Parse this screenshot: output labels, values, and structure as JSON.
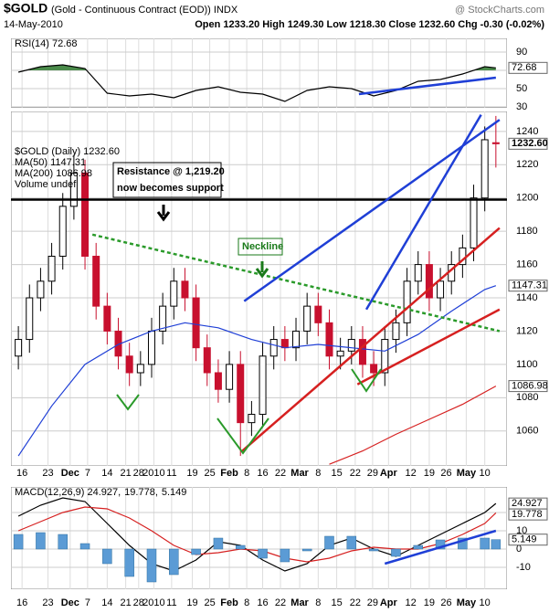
{
  "header": {
    "symbol": "$GOLD",
    "name": "(Gold - Continuous Contract (EOD)) INDX",
    "source": "@ StockCharts.com",
    "date": "14-May-2010",
    "quote": "Open 1233.20  High 1249.30  Low 1218.30  Close 1232.60  Chg -0.30 (-0.02%)"
  },
  "xlim": [
    -2,
    132
  ],
  "xticks": [
    {
      "value": 1,
      "label": "16"
    },
    {
      "value": 8,
      "label": "23"
    },
    {
      "value": 14,
      "label": "Dec"
    },
    {
      "value": 18.7,
      "label": "7"
    },
    {
      "value": 24,
      "label": "14"
    },
    {
      "value": 29,
      "label": "21"
    },
    {
      "value": 32.5,
      "label": "28"
    },
    {
      "value": 36.6,
      "label": "2010"
    },
    {
      "value": 41.4,
      "label": "11"
    },
    {
      "value": 47,
      "label": "19"
    },
    {
      "value": 51.7,
      "label": "25"
    },
    {
      "value": 57,
      "label": "Feb"
    },
    {
      "value": 61.7,
      "label": "8"
    },
    {
      "value": 66,
      "label": "16"
    },
    {
      "value": 70.8,
      "label": "22"
    },
    {
      "value": 76,
      "label": "Mar"
    },
    {
      "value": 81,
      "label": "8"
    },
    {
      "value": 86,
      "label": "15"
    },
    {
      "value": 91,
      "label": "22"
    },
    {
      "value": 95.7,
      "label": "29"
    },
    {
      "value": 100,
      "label": "Apr"
    },
    {
      "value": 106,
      "label": "12"
    },
    {
      "value": 111,
      "label": "19"
    },
    {
      "value": 115.6,
      "label": "26"
    },
    {
      "value": 121,
      "label": "May"
    },
    {
      "value": 126,
      "label": "10"
    }
  ],
  "chart_data": [
    {
      "type": "line",
      "legend": [
        {
          "text": "RSI(14) 72.68",
          "color": "#000000"
        }
      ],
      "ylim": [
        29,
        105
      ],
      "yticks": [
        30,
        50,
        70,
        90
      ],
      "fill_above": 70,
      "fill_color": "#4a8a4a",
      "series": [
        {
          "color": "#000000",
          "tag": "72.68",
          "x": [
            0,
            6,
            12,
            18,
            24,
            30,
            36,
            42,
            48,
            54,
            60,
            66,
            72,
            78,
            84,
            90,
            96,
            102,
            108,
            114,
            120,
            126,
            129
          ],
          "values": [
            68,
            74,
            76,
            72,
            45,
            42,
            44,
            40,
            48,
            52,
            46,
            44,
            36,
            48,
            52,
            50,
            42,
            48,
            58,
            60,
            66,
            74,
            72.68
          ]
        }
      ],
      "trendlines": [
        {
          "color": "#1f3fd6",
          "x1": 92,
          "y1": 44,
          "x2": 129,
          "y2": 62
        }
      ]
    },
    {
      "type": "candlestick",
      "legend": [
        {
          "text": "$GOLD (Daily) 1232.60",
          "color": "#000000"
        },
        {
          "text": "MA(50) 1147.31",
          "color": "#1f3fd6"
        },
        {
          "text": "MA(200) 1086.98",
          "color": "#d62020"
        },
        {
          "text": "Volume undef",
          "color": "#000000"
        }
      ],
      "ylim": [
        1039,
        1252
      ],
      "yticks": [
        1060,
        1080,
        1100,
        1120,
        1140,
        1160,
        1180,
        1200,
        1220,
        1240
      ],
      "up_color": "#000000",
      "down_color": "#c8102e",
      "tag": "1232.60",
      "x": [
        0,
        3,
        6,
        9,
        12,
        15,
        18,
        21,
        24,
        27,
        30,
        33,
        36,
        39,
        42,
        45,
        48,
        51,
        54,
        57,
        60,
        63,
        66,
        69,
        72,
        75,
        78,
        81,
        84,
        87,
        90,
        93,
        96,
        99,
        102,
        105,
        108,
        111,
        114,
        117,
        120,
        123,
        126,
        129
      ],
      "open": [
        1105,
        1115,
        1140,
        1150,
        1165,
        1195,
        1215,
        1165,
        1135,
        1120,
        1105,
        1095,
        1100,
        1120,
        1135,
        1150,
        1140,
        1110,
        1095,
        1085,
        1100,
        1065,
        1070,
        1105,
        1115,
        1110,
        1120,
        1135,
        1125,
        1105,
        1108,
        1115,
        1100,
        1095,
        1115,
        1125,
        1150,
        1160,
        1140,
        1150,
        1160,
        1170,
        1200,
        1233.2
      ],
      "high": [
        1123,
        1148,
        1158,
        1173,
        1203,
        1226,
        1223,
        1173,
        1143,
        1128,
        1113,
        1108,
        1128,
        1143,
        1158,
        1158,
        1148,
        1118,
        1103,
        1108,
        1108,
        1078,
        1113,
        1123,
        1123,
        1128,
        1143,
        1143,
        1133,
        1116,
        1123,
        1123,
        1108,
        1123,
        1133,
        1158,
        1168,
        1168,
        1158,
        1168,
        1178,
        1208,
        1243,
        1249.3
      ],
      "low": [
        1097,
        1107,
        1132,
        1142,
        1157,
        1187,
        1157,
        1127,
        1112,
        1097,
        1087,
        1087,
        1092,
        1112,
        1127,
        1132,
        1102,
        1087,
        1077,
        1077,
        1045,
        1057,
        1062,
        1097,
        1102,
        1102,
        1112,
        1117,
        1097,
        1097,
        1100,
        1092,
        1087,
        1087,
        1107,
        1117,
        1142,
        1132,
        1132,
        1142,
        1152,
        1162,
        1192,
        1218.3
      ],
      "close": [
        1115,
        1140,
        1150,
        1165,
        1195,
        1215,
        1165,
        1135,
        1120,
        1105,
        1095,
        1100,
        1120,
        1135,
        1150,
        1140,
        1110,
        1095,
        1085,
        1100,
        1065,
        1070,
        1105,
        1115,
        1110,
        1120,
        1135,
        1125,
        1105,
        1108,
        1115,
        1100,
        1095,
        1115,
        1125,
        1150,
        1160,
        1140,
        1150,
        1160,
        1170,
        1200,
        1235,
        1232.6
      ],
      "series": [
        {
          "color": "#1f3fd6",
          "tag": "1147.31",
          "x": [
            0,
            9,
            18,
            27,
            36,
            45,
            54,
            63,
            72,
            81,
            90,
            99,
            108,
            117,
            126,
            129
          ],
          "values": [
            1045,
            1075,
            1100,
            1112,
            1120,
            1125,
            1122,
            1115,
            1110,
            1112,
            1110,
            1108,
            1118,
            1132,
            1145,
            1147.31
          ]
        },
        {
          "color": "#d62020",
          "tag": "1086.98",
          "x": [
            84,
            93,
            102,
            111,
            120,
            129
          ],
          "values": [
            1040,
            1048,
            1058,
            1067,
            1076,
            1086.98
          ]
        }
      ],
      "trendlines": [
        {
          "color": "#000000",
          "x1": -2,
          "y1": 1199,
          "x2": 132,
          "y2": 1199
        },
        {
          "color": "#2a9a2a",
          "dash": true,
          "x1": 20,
          "y1": 1178,
          "x2": 130,
          "y2": 1120
        },
        {
          "color": "#1f3fd6",
          "x1": 61,
          "y1": 1138,
          "x2": 130,
          "y2": 1247
        },
        {
          "color": "#1f3fd6",
          "x1": 94,
          "y1": 1133,
          "x2": 125,
          "y2": 1250
        },
        {
          "color": "#d62020",
          "x1": 60.5,
          "y1": 1048,
          "x2": 130,
          "y2": 1182
        },
        {
          "color": "#d62020",
          "x1": 91.6,
          "y1": 1088,
          "x2": 130,
          "y2": 1133
        }
      ],
      "annotations": [
        "Resistance @ 1,219.20",
        "now becomes support",
        "Neckline"
      ]
    },
    {
      "type": "line",
      "legend": [
        {
          "text": "MACD(12,26,9) 24.927,",
          "color": "#000000"
        },
        {
          "text": "19.778,",
          "color": "#d62020"
        },
        {
          "text": "5.149",
          "color": "#3a8fd0"
        }
      ],
      "ylim": [
        -22,
        34
      ],
      "yticks": [
        -10,
        0,
        10,
        20
      ],
      "series": [
        {
          "color": "#000000",
          "tag": "24.927",
          "x": [
            0,
            6,
            12,
            18,
            24,
            30,
            36,
            42,
            48,
            54,
            60,
            66,
            72,
            78,
            84,
            90,
            96,
            102,
            108,
            114,
            120,
            126,
            129
          ],
          "values": [
            18,
            24,
            28,
            26,
            14,
            2,
            -8,
            -12,
            -6,
            4,
            2,
            -6,
            -12,
            -8,
            2,
            6,
            0,
            -4,
            2,
            8,
            14,
            20,
            24.927
          ]
        },
        {
          "color": "#d62020",
          "tag": "19.778",
          "x": [
            0,
            6,
            12,
            18,
            24,
            30,
            36,
            42,
            48,
            54,
            60,
            66,
            72,
            78,
            84,
            90,
            96,
            102,
            108,
            114,
            120,
            126,
            129
          ],
          "values": [
            10,
            15,
            20,
            23,
            22,
            17,
            10,
            2,
            -3,
            -2,
            0,
            -1,
            -5,
            -7,
            -5,
            -1,
            1,
            0,
            0,
            3,
            8,
            14,
            19.778
          ]
        },
        {
          "type": "bar",
          "color": "#5b9bd5",
          "tag": "5.149",
          "x": [
            0,
            6,
            12,
            18,
            24,
            30,
            36,
            42,
            48,
            54,
            60,
            66,
            72,
            78,
            84,
            90,
            96,
            102,
            108,
            114,
            120,
            126,
            129
          ],
          "values": [
            8,
            9,
            8,
            3,
            -8,
            -15,
            -18,
            -14,
            -3,
            6,
            2,
            -5,
            -7,
            -1,
            7,
            7,
            -1,
            -4,
            2,
            5,
            6,
            6,
            5.149
          ]
        }
      ],
      "trendlines": [
        {
          "color": "#1f3fd6",
          "x1": 99,
          "y1": -8,
          "x2": 129,
          "y2": 10
        }
      ]
    }
  ]
}
